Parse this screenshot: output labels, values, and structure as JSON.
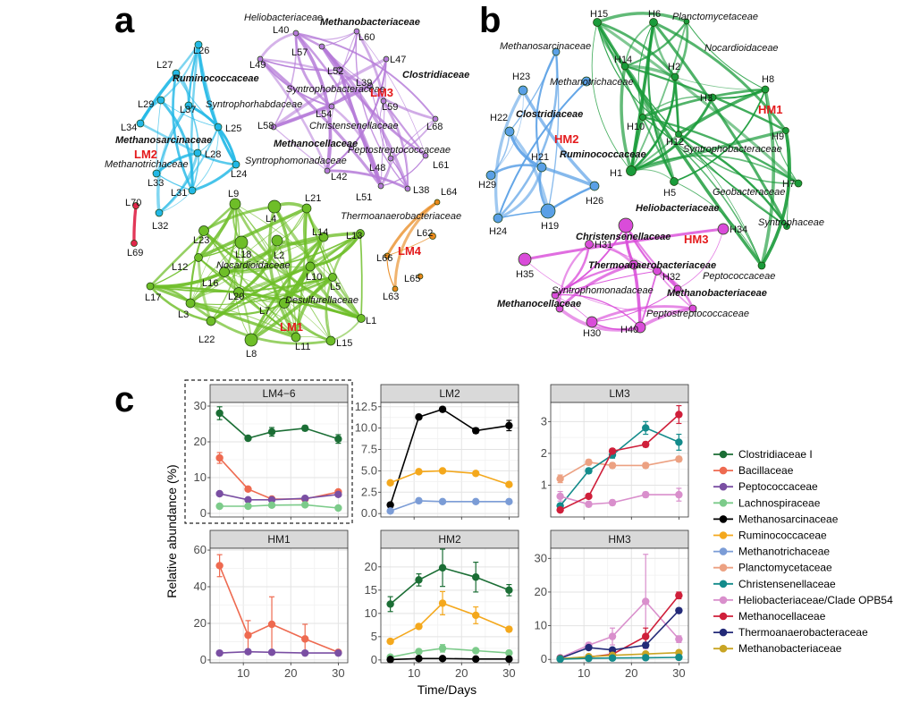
{
  "panels": {
    "a": "a",
    "b": "b",
    "c": "c"
  },
  "network_a": {
    "modules": [
      {
        "label": "LM1",
        "color": "#6ebe28"
      },
      {
        "label": "LM2",
        "color": "#22b8e6"
      },
      {
        "label": "LM3",
        "color": "#b57ad8"
      },
      {
        "label": "LM4",
        "color": "#e8881c"
      }
    ],
    "nodes": [
      "L1",
      "L2",
      "L3",
      "L4",
      "L5",
      "L7",
      "L8",
      "L9",
      "L10",
      "L11",
      "L12",
      "L13",
      "L14",
      "L15",
      "L16",
      "L17",
      "L18",
      "L20",
      "L21",
      "L22",
      "L23",
      "L24",
      "L25",
      "L26",
      "L27",
      "L28",
      "L29",
      "L31",
      "L32",
      "L33",
      "L34",
      "L37",
      "L38",
      "L39",
      "L40",
      "L42",
      "L47",
      "L48",
      "L49",
      "L51",
      "L52",
      "L54",
      "L57",
      "L58",
      "L59",
      "L60",
      "L61",
      "L62",
      "L63",
      "L64",
      "L65",
      "L66",
      "L68",
      "L69",
      "L70"
    ],
    "family_labels": [
      {
        "text": "Heliobacteriaceae",
        "bold": false
      },
      {
        "text": "Methanobacteriaceae",
        "bold": true
      },
      {
        "text": "Clostridiaceae",
        "bold": true
      },
      {
        "text": "Ruminococcaceae",
        "bold": true
      },
      {
        "text": "Syntrophobacteraceae",
        "bold": false
      },
      {
        "text": "Syntrophorhabdaceae",
        "bold": false
      },
      {
        "text": "Christensenellaceae",
        "bold": false
      },
      {
        "text": "Methanocellaceae",
        "bold": true
      },
      {
        "text": "Peptostreptococcaceae",
        "bold": false
      },
      {
        "text": "Methanosarcinaceae",
        "bold": true
      },
      {
        "text": "Methanotrichaceae",
        "bold": false
      },
      {
        "text": "Syntrophomonadaceae",
        "bold": false
      },
      {
        "text": "Thermoanaerobacteriaceae",
        "bold": false
      },
      {
        "text": "Nocardioidaceae",
        "bold": false
      },
      {
        "text": "Desulfurellaceae",
        "bold": false
      }
    ]
  },
  "network_b": {
    "modules": [
      {
        "label": "HM1",
        "color": "#1a9b3a"
      },
      {
        "label": "HM2",
        "color": "#5aa0e6"
      },
      {
        "label": "HM3",
        "color": "#d94cd9"
      }
    ],
    "nodes": [
      "H1",
      "H2",
      "H3",
      "H5",
      "H6",
      "H7",
      "H8",
      "H9",
      "H10",
      "H12",
      "H14",
      "H15",
      "H19",
      "H21",
      "H22",
      "H23",
      "H24",
      "H26",
      "H29",
      "H30",
      "H31",
      "H32",
      "H34",
      "H35",
      "H40"
    ],
    "family_labels": [
      {
        "text": "Planctomycetaceae",
        "bold": false
      },
      {
        "text": "Methanosarcinaceae",
        "bold": false
      },
      {
        "text": "Nocardioidaceae",
        "bold": false
      },
      {
        "text": "Methanotrichaceae",
        "bold": false
      },
      {
        "text": "Clostridiaceae",
        "bold": true
      },
      {
        "text": "Ruminococcaceae",
        "bold": true
      },
      {
        "text": "Syntrophobacteraceae",
        "bold": false
      },
      {
        "text": "Geobacteraceae",
        "bold": false
      },
      {
        "text": "Heliobacteriaceae",
        "bold": true
      },
      {
        "text": "Syntrophaceae",
        "bold": false
      },
      {
        "text": "Christensenellaceae",
        "bold": true
      },
      {
        "text": "Thermoanaerobacteriaceae",
        "bold": true
      },
      {
        "text": "Peptococcaceae",
        "bold": false
      },
      {
        "text": "Syntrophomonadaceae",
        "bold": false
      },
      {
        "text": "Methanocellaceae",
        "bold": true
      },
      {
        "text": "Methanobacteriaceae",
        "bold": true
      },
      {
        "text": "Peptostreptococcaceae",
        "bold": false
      }
    ]
  },
  "chart_data": {
    "type": "line",
    "ylabel": "Relative abundance (%)",
    "xlabel": "Time/Days",
    "x": [
      5,
      11,
      16,
      23,
      30
    ],
    "xticks": [
      10,
      20,
      30
    ],
    "legend": [
      {
        "name": "Clostridiaceae I",
        "color": "#1b6e35"
      },
      {
        "name": "Bacillaceae",
        "color": "#ee6a50"
      },
      {
        "name": "Peptococcaceae",
        "color": "#7a4fa3"
      },
      {
        "name": "Lachnospiraceae",
        "color": "#7ccb8a"
      },
      {
        "name": "Methanosarcinaceae",
        "color": "#000000"
      },
      {
        "name": "Ruminococcaceae",
        "color": "#f4a81c"
      },
      {
        "name": "Methanotrichaceae",
        "color": "#7b9cd6"
      },
      {
        "name": "Planctomycetaceae",
        "color": "#eca182"
      },
      {
        "name": "Christensenellaceae",
        "color": "#138b8b"
      },
      {
        "name": "Heliobacteriaceae/Clade OPB54",
        "color": "#d98fcc"
      },
      {
        "name": "Methanocellaceae",
        "color": "#cf1f3a"
      },
      {
        "name": "Thermoanaerobacteraceae",
        "color": "#232a78"
      },
      {
        "name": "Methanobacteriaceae",
        "color": "#c9a524"
      }
    ],
    "facets": [
      {
        "title": "LM4−6",
        "dashed_box": true,
        "ylim": [
          -1,
          31
        ],
        "yticks": [
          0,
          10,
          20,
          30
        ],
        "series": [
          {
            "name": "Clostridiaceae I",
            "values": [
              28.0,
              21.0,
              22.8,
              23.8,
              20.8
            ],
            "err": [
              1.8,
              0.6,
              1.2,
              0.7,
              1.2
            ]
          },
          {
            "name": "Bacillaceae",
            "values": [
              15.5,
              6.8,
              4.0,
              4.0,
              6.0
            ],
            "err": [
              1.5,
              0.5,
              0.5,
              0.3,
              0.5
            ]
          },
          {
            "name": "Peptococcaceae",
            "values": [
              5.5,
              3.8,
              3.8,
              4.2,
              5.3
            ],
            "err": [
              0.4,
              0.3,
              0.3,
              0.3,
              0.3
            ]
          },
          {
            "name": "Lachnospiraceae",
            "values": [
              2.0,
              2.0,
              2.3,
              2.4,
              1.5
            ],
            "err": [
              0.3,
              0.3,
              0.3,
              0.3,
              0.3
            ]
          }
        ]
      },
      {
        "title": "LM2",
        "dashed_box": false,
        "ylim": [
          -0.4,
          13.0
        ],
        "yticks": [
          0.0,
          2.5,
          5.0,
          7.5,
          10.0,
          12.5
        ],
        "ytick_labels": [
          "0.0",
          "2.5",
          "5.0",
          "7.5",
          "10.0",
          "12.5"
        ],
        "series": [
          {
            "name": "Methanosarcinaceae",
            "values": [
              1.0,
              11.3,
              12.2,
              9.7,
              10.3
            ],
            "err": [
              0.1,
              0.2,
              0.2,
              0.3,
              0.6
            ]
          },
          {
            "name": "Ruminococcaceae",
            "values": [
              3.6,
              4.9,
              5.0,
              4.7,
              3.4
            ],
            "err": [
              0.1,
              0.1,
              0.1,
              0.1,
              0.1
            ]
          },
          {
            "name": "Methanotrichaceae",
            "values": [
              0.3,
              1.5,
              1.4,
              1.4,
              1.4
            ],
            "err": [
              0.05,
              0.1,
              0.1,
              0.1,
              0.1
            ]
          }
        ]
      },
      {
        "title": "LM3",
        "dashed_box": false,
        "ylim": [
          0.0,
          3.6
        ],
        "yticks": [
          1,
          2,
          3
        ],
        "series": [
          {
            "name": "Planctomycetaceae",
            "values": [
              1.2,
              1.72,
              1.62,
              1.62,
              1.82
            ],
            "err": [
              0.12,
              0.08,
              0.08,
              0.08,
              0.08
            ]
          },
          {
            "name": "Christensenellaceae",
            "values": [
              0.35,
              1.45,
              1.95,
              2.8,
              2.35
            ],
            "err": [
              0.05,
              0.08,
              0.1,
              0.2,
              0.25
            ]
          },
          {
            "name": "Heliobacteriaceae/Clade OPB54",
            "values": [
              0.65,
              0.4,
              0.45,
              0.7,
              0.7
            ],
            "err": [
              0.15,
              0.08,
              0.08,
              0.08,
              0.2
            ]
          },
          {
            "name": "Methanocellaceae",
            "values": [
              0.22,
              0.65,
              2.07,
              2.28,
              3.22
            ],
            "err": [
              0.03,
              0.06,
              0.07,
              0.08,
              0.28
            ]
          }
        ]
      },
      {
        "title": "HM1",
        "dashed_box": false,
        "ylim": [
          -1.5,
          61
        ],
        "yticks": [
          0,
          20,
          40,
          60
        ],
        "series": [
          {
            "name": "Bacillaceae",
            "values": [
              51.5,
              13.5,
              19.5,
              11.5,
              4.2
            ],
            "err": [
              6.0,
              8.0,
              15.0,
              8.0,
              1.0
            ]
          },
          {
            "name": "Peptococcaceae",
            "values": [
              3.8,
              4.5,
              4.2,
              3.8,
              3.8
            ],
            "err": [
              0.4,
              0.4,
              0.4,
              0.4,
              0.4
            ]
          }
        ]
      },
      {
        "title": "HM2",
        "dashed_box": false,
        "ylim": [
          -0.6,
          24
        ],
        "yticks": [
          0,
          5,
          10,
          15,
          20
        ],
        "series": [
          {
            "name": "Clostridiaceae I",
            "values": [
              12.0,
              17.2,
              19.8,
              17.8,
              15.0
            ],
            "err": [
              1.6,
              1.3,
              4.0,
              3.2,
              1.2
            ]
          },
          {
            "name": "Ruminococcaceae",
            "values": [
              4.0,
              7.2,
              12.2,
              9.6,
              6.6
            ],
            "err": [
              0.5,
              0.5,
              2.5,
              1.8,
              0.5
            ]
          },
          {
            "name": "Lachnospiraceae",
            "values": [
              0.6,
              1.8,
              2.5,
              2.0,
              1.5
            ],
            "err": [
              0.2,
              0.4,
              0.8,
              0.4,
              0.3
            ]
          },
          {
            "name": "Methanosarcinaceae",
            "values": [
              0.1,
              0.3,
              0.3,
              0.2,
              0.2
            ],
            "err": [
              0.05,
              0.05,
              0.05,
              0.05,
              0.05
            ]
          }
        ]
      },
      {
        "title": "HM3",
        "dashed_box": false,
        "ylim": [
          -1.0,
          33
        ],
        "yticks": [
          0,
          10,
          20,
          30
        ],
        "series": [
          {
            "name": "Heliobacteriaceae/Clade OPB54",
            "values": [
              0.5,
              4.2,
              6.8,
              17.2,
              6.0
            ],
            "err": [
              0.2,
              0.8,
              2.5,
              14.0,
              1.0
            ]
          },
          {
            "name": "Methanocellaceae",
            "values": [
              0.2,
              0.7,
              1.5,
              6.8,
              19.0
            ],
            "err": [
              0.05,
              0.1,
              0.3,
              2.5,
              1.0
            ]
          },
          {
            "name": "Thermoanaerobacteraceae",
            "values": [
              0.3,
              3.5,
              2.8,
              4.2,
              14.5
            ],
            "err": [
              0.1,
              0.5,
              0.5,
              0.8,
              0.5
            ]
          },
          {
            "name": "Methanobacteriaceae",
            "values": [
              0.2,
              0.8,
              1.2,
              1.6,
              2.0
            ],
            "err": [
              0.05,
              0.1,
              0.1,
              0.2,
              0.2
            ]
          },
          {
            "name": "Christensenellaceae",
            "values": [
              0.1,
              0.3,
              0.4,
              0.5,
              0.6
            ],
            "err": [
              0.05,
              0.05,
              0.05,
              0.05,
              0.05
            ]
          }
        ]
      }
    ]
  }
}
